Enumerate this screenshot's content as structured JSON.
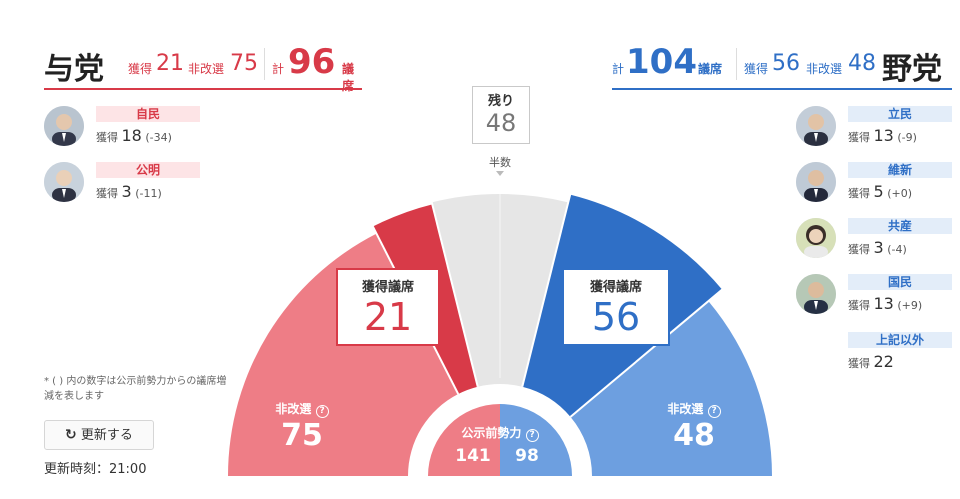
{
  "ruling": {
    "title": "与党",
    "won_label": "獲得",
    "won": "21",
    "unchanged_label": "非改選",
    "unchanged": "75",
    "total_label": "計",
    "total": "96",
    "total_unit": "議席",
    "parties": [
      {
        "name": "自民",
        "won_label": "獲得",
        "won": "18",
        "delta": "(-34)"
      },
      {
        "name": "公明",
        "won_label": "獲得",
        "won": "3",
        "delta": "(-11)"
      }
    ]
  },
  "opposition": {
    "title": "野党",
    "won_label": "獲得",
    "won": "56",
    "unchanged_label": "非改選",
    "unchanged": "48",
    "total_label": "計",
    "total": "104",
    "total_unit": "議席",
    "parties": [
      {
        "name": "立民",
        "won_label": "獲得",
        "won": "13",
        "delta": "(-9)"
      },
      {
        "name": "維新",
        "won_label": "獲得",
        "won": "5",
        "delta": "(+0)"
      },
      {
        "name": "共産",
        "won_label": "獲得",
        "won": "3",
        "delta": "(-4)"
      },
      {
        "name": "国民",
        "won_label": "獲得",
        "won": "13",
        "delta": "(+9)"
      },
      {
        "name": "上記以外",
        "won_label": "獲得",
        "won": "22",
        "delta": ""
      }
    ]
  },
  "remaining": {
    "label": "残り",
    "value": "48"
  },
  "majority_label": "半数",
  "chart": {
    "won_label": "獲得議席",
    "unchanged_label": "非改選",
    "info_icon": "info-circle-icon",
    "ruling_won": "21",
    "opposition_won": "56",
    "ruling_unchanged": "75",
    "opposition_unchanged": "48",
    "center_label": "公示前勢力",
    "center_ruling": "141",
    "center_opposition": "98"
  },
  "colors": {
    "ruling_dark": "#d83a48",
    "ruling_light": "#ee7d86",
    "opposition_dark": "#2f6fc6",
    "opposition_light": "#6d9fe0",
    "remaining": "#e6e6e6"
  },
  "footnote": "* ( ) 内の数字は公示前勢力からの議席増減を表します",
  "refresh_label": "更新する",
  "refresh_icon": "refresh-icon",
  "update_time_label": "更新時刻：21:00"
}
